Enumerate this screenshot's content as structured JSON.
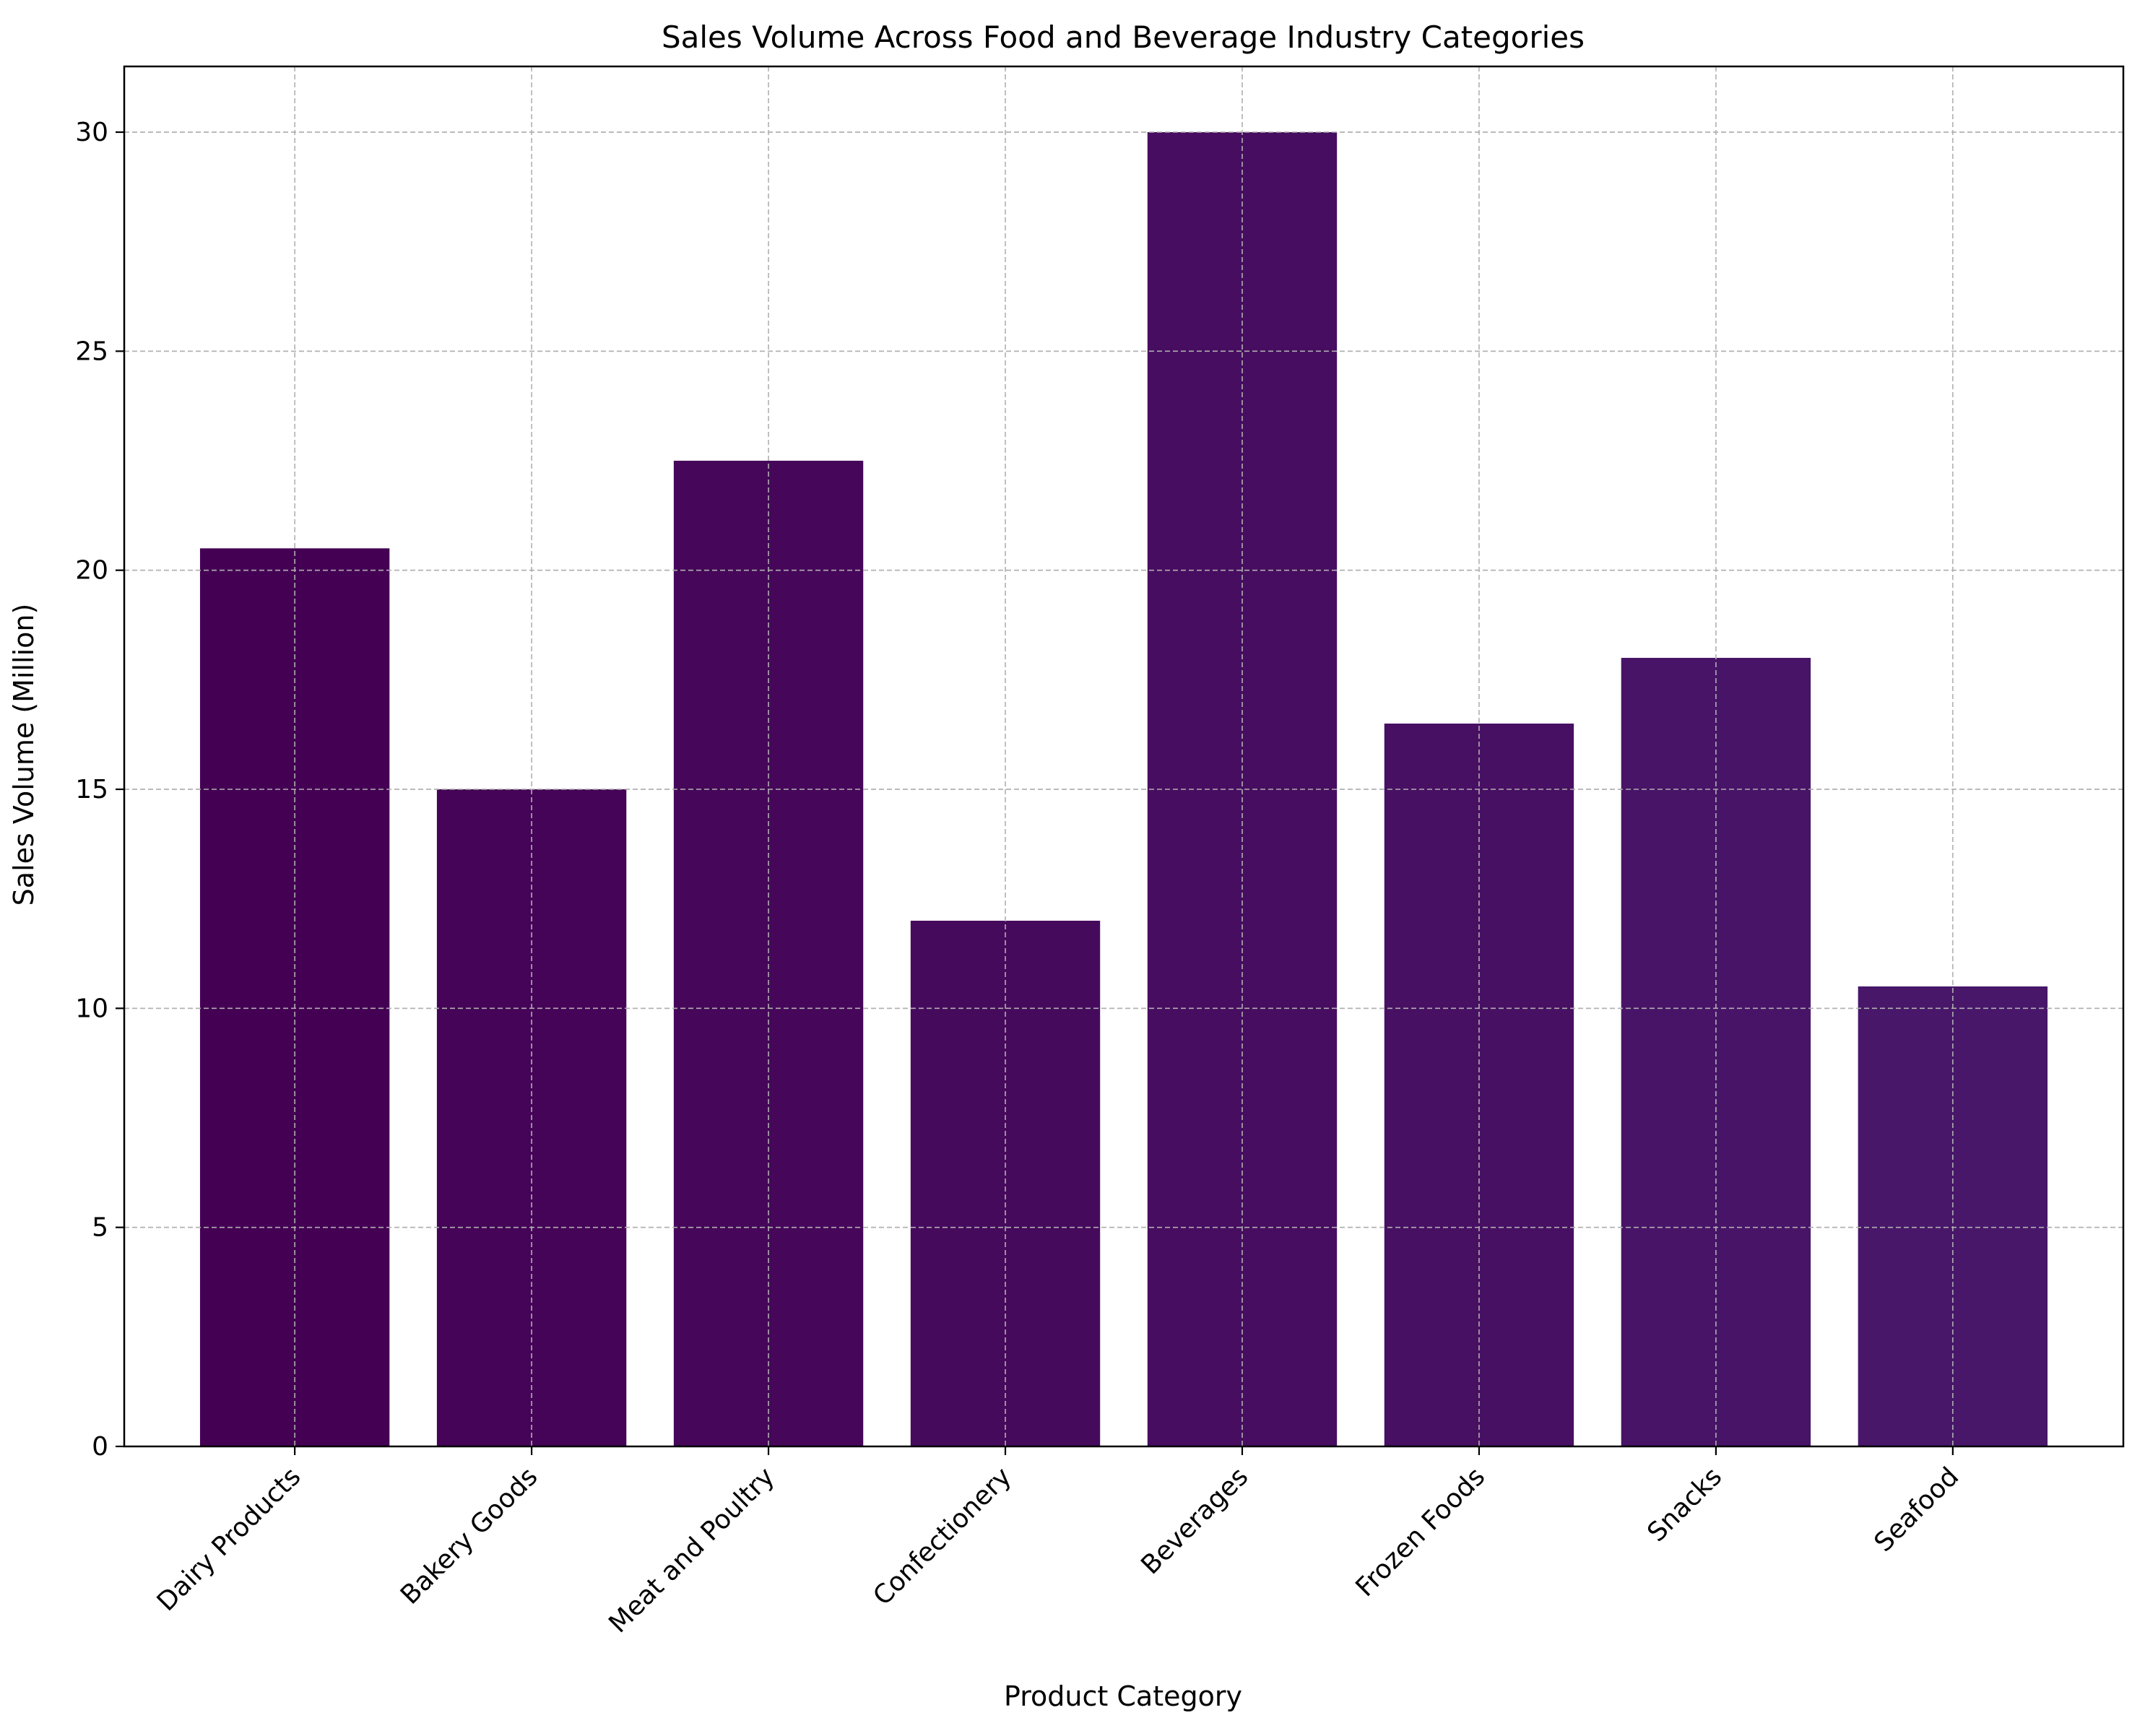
{
  "chart_data": {
    "type": "bar",
    "title": "Sales Volume Across Food and Beverage Industry Categories",
    "xlabel": "Product Category",
    "ylabel": "Sales Volume (Million)",
    "categories": [
      "Dairy Products",
      "Bakery Goods",
      "Meat and Poultry",
      "Confectionery",
      "Beverages",
      "Frozen Foods",
      "Snacks",
      "Seafood"
    ],
    "values": [
      20.5,
      15,
      22.5,
      12,
      30,
      16.5,
      18,
      10.5
    ],
    "ylim": [
      0,
      31.5
    ],
    "yticks": [
      0,
      5,
      10,
      15,
      20,
      25,
      30
    ],
    "grid": true,
    "colors": {
      "bars": [
        "#440154",
        "#450457",
        "#46075a",
        "#460a5d",
        "#470d60",
        "#471063",
        "#481467",
        "#481769"
      ],
      "grid": "#b0b0b0",
      "axis": "#000000"
    }
  }
}
